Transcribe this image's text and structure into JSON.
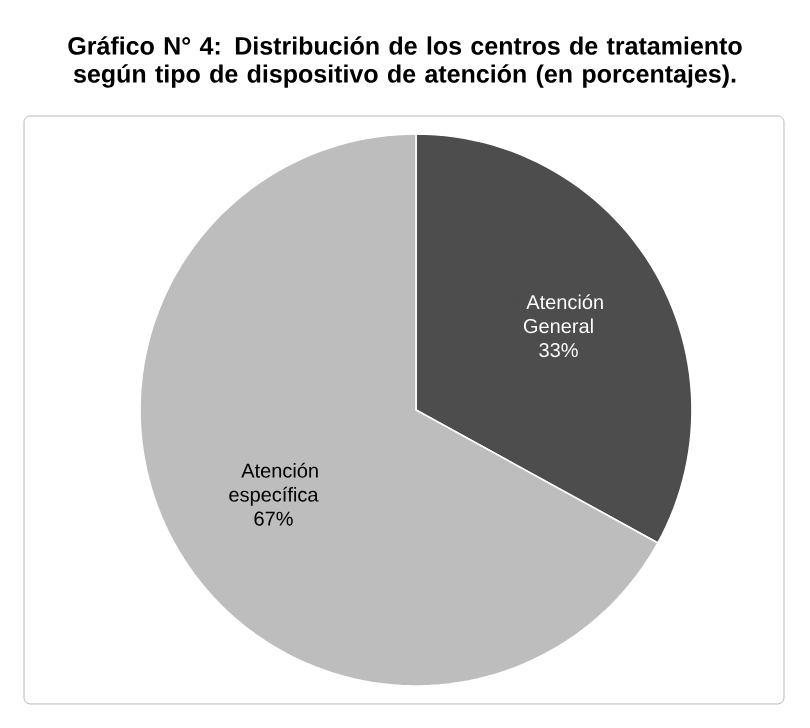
{
  "chart_data": {
    "type": "pie",
    "title": "Gráfico N° 4: Distribución de los centros de tratamiento según tipo de dispositivo de atención (en porcentajes).",
    "categories": [
      "Atención General",
      "Atención específica"
    ],
    "values": [
      33,
      67
    ],
    "colors": [
      "#4d4d4d",
      "#bdbdbd"
    ],
    "value_labels": [
      "33%",
      "67%"
    ]
  }
}
